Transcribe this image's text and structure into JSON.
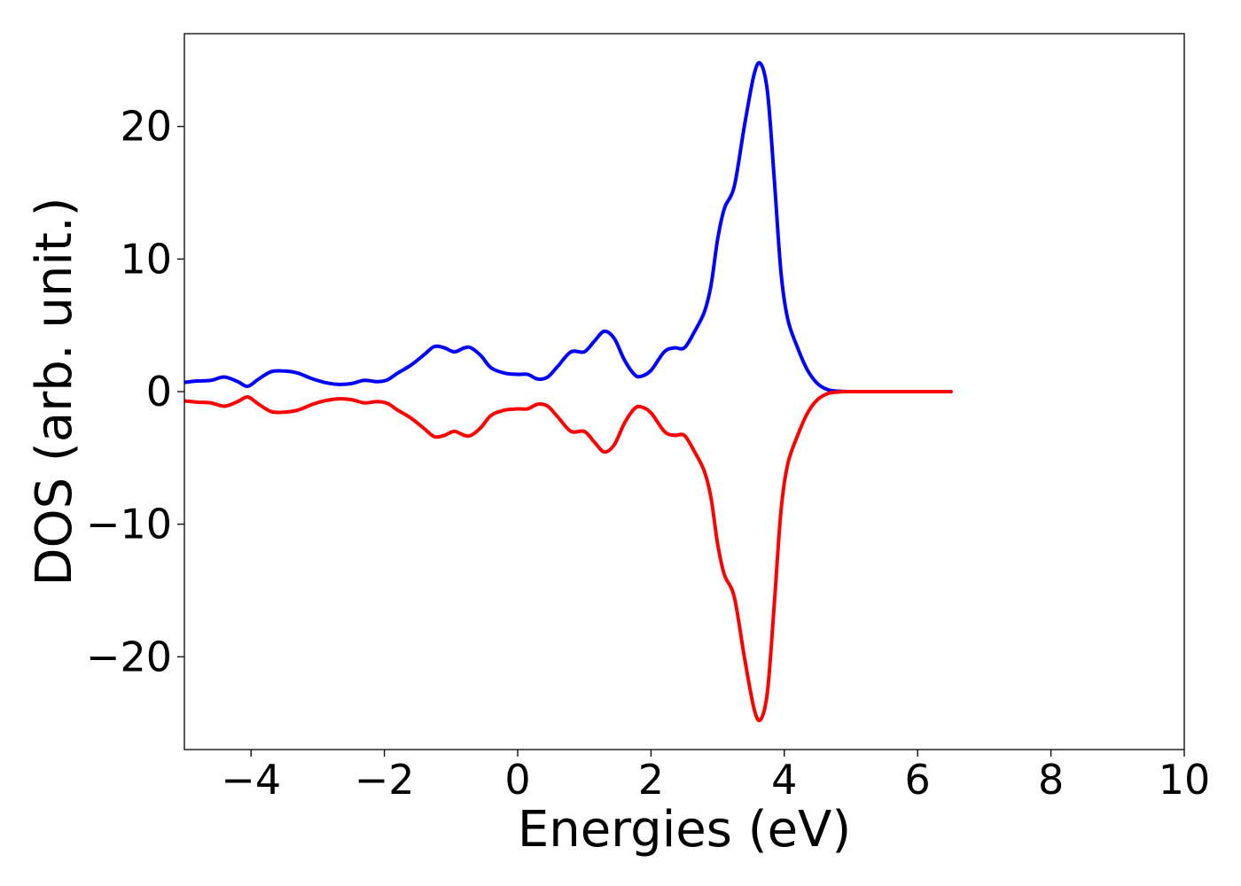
{
  "chart_data": {
    "type": "line",
    "title": "",
    "xlabel": "Energies (eV)",
    "ylabel": "DOS (arb. unit.)",
    "xlim": [
      -5,
      10
    ],
    "ylim": [
      -27,
      27
    ],
    "grid": false,
    "legend": "none",
    "x_ticks": [
      -4,
      -2,
      0,
      2,
      4,
      6,
      8,
      10
    ],
    "x_tick_labels": [
      "−4",
      "−2",
      "0",
      "2",
      "4",
      "6",
      "8",
      "10"
    ],
    "y_ticks": [
      -20,
      -10,
      0,
      10,
      20
    ],
    "y_tick_labels": [
      "−20",
      "−10",
      "0",
      "10",
      "20"
    ],
    "series": [
      {
        "color": "#0000ff",
        "points": [
          [
            -5.0,
            0.7
          ],
          [
            -4.8,
            0.8
          ],
          [
            -4.6,
            0.85
          ],
          [
            -4.4,
            1.1
          ],
          [
            -4.2,
            0.75
          ],
          [
            -4.05,
            0.4
          ],
          [
            -3.9,
            0.9
          ],
          [
            -3.7,
            1.5
          ],
          [
            -3.5,
            1.55
          ],
          [
            -3.3,
            1.4
          ],
          [
            -3.1,
            1.0
          ],
          [
            -2.9,
            0.7
          ],
          [
            -2.7,
            0.55
          ],
          [
            -2.5,
            0.6
          ],
          [
            -2.3,
            0.85
          ],
          [
            -2.1,
            0.75
          ],
          [
            -1.95,
            0.9
          ],
          [
            -1.8,
            1.4
          ],
          [
            -1.6,
            2.0
          ],
          [
            -1.4,
            2.8
          ],
          [
            -1.25,
            3.4
          ],
          [
            -1.1,
            3.3
          ],
          [
            -0.95,
            3.0
          ],
          [
            -0.8,
            3.3
          ],
          [
            -0.7,
            3.3
          ],
          [
            -0.55,
            2.7
          ],
          [
            -0.4,
            1.8
          ],
          [
            -0.2,
            1.4
          ],
          [
            0.0,
            1.3
          ],
          [
            0.15,
            1.3
          ],
          [
            0.3,
            0.95
          ],
          [
            0.45,
            1.1
          ],
          [
            0.6,
            1.9
          ],
          [
            0.8,
            3.0
          ],
          [
            1.0,
            3.0
          ],
          [
            1.15,
            3.8
          ],
          [
            1.3,
            4.55
          ],
          [
            1.45,
            4.0
          ],
          [
            1.6,
            2.4
          ],
          [
            1.75,
            1.3
          ],
          [
            1.85,
            1.15
          ],
          [
            2.0,
            1.6
          ],
          [
            2.2,
            3.0
          ],
          [
            2.35,
            3.3
          ],
          [
            2.5,
            3.3
          ],
          [
            2.65,
            4.5
          ],
          [
            2.8,
            6.0
          ],
          [
            2.9,
            8.0
          ],
          [
            3.0,
            11.5
          ],
          [
            3.1,
            13.8
          ],
          [
            3.25,
            15.5
          ],
          [
            3.4,
            20.0
          ],
          [
            3.55,
            24.0
          ],
          [
            3.65,
            24.7
          ],
          [
            3.75,
            22.5
          ],
          [
            3.85,
            16.0
          ],
          [
            3.95,
            9.0
          ],
          [
            4.05,
            5.5
          ],
          [
            4.2,
            3.3
          ],
          [
            4.35,
            1.6
          ],
          [
            4.5,
            0.6
          ],
          [
            4.65,
            0.15
          ],
          [
            4.8,
            0.03
          ],
          [
            5.0,
            0.0
          ],
          [
            5.5,
            0.0
          ],
          [
            6.0,
            0.0
          ],
          [
            6.5,
            0.0
          ]
        ]
      },
      {
        "color": "#ff0000",
        "points": [
          [
            -5.0,
            -0.7
          ],
          [
            -4.8,
            -0.8
          ],
          [
            -4.6,
            -0.85
          ],
          [
            -4.4,
            -1.1
          ],
          [
            -4.2,
            -0.75
          ],
          [
            -4.05,
            -0.4
          ],
          [
            -3.9,
            -0.9
          ],
          [
            -3.7,
            -1.5
          ],
          [
            -3.5,
            -1.55
          ],
          [
            -3.3,
            -1.4
          ],
          [
            -3.1,
            -1.0
          ],
          [
            -2.9,
            -0.7
          ],
          [
            -2.7,
            -0.55
          ],
          [
            -2.5,
            -0.6
          ],
          [
            -2.3,
            -0.85
          ],
          [
            -2.1,
            -0.75
          ],
          [
            -1.95,
            -0.9
          ],
          [
            -1.8,
            -1.4
          ],
          [
            -1.6,
            -2.0
          ],
          [
            -1.4,
            -2.8
          ],
          [
            -1.25,
            -3.4
          ],
          [
            -1.1,
            -3.3
          ],
          [
            -0.95,
            -3.0
          ],
          [
            -0.8,
            -3.3
          ],
          [
            -0.7,
            -3.3
          ],
          [
            -0.55,
            -2.7
          ],
          [
            -0.4,
            -1.8
          ],
          [
            -0.2,
            -1.4
          ],
          [
            0.0,
            -1.3
          ],
          [
            0.15,
            -1.3
          ],
          [
            0.3,
            -0.95
          ],
          [
            0.45,
            -1.1
          ],
          [
            0.6,
            -1.9
          ],
          [
            0.8,
            -3.0
          ],
          [
            1.0,
            -3.0
          ],
          [
            1.15,
            -3.8
          ],
          [
            1.3,
            -4.55
          ],
          [
            1.45,
            -4.0
          ],
          [
            1.6,
            -2.4
          ],
          [
            1.75,
            -1.3
          ],
          [
            1.85,
            -1.15
          ],
          [
            2.0,
            -1.6
          ],
          [
            2.2,
            -3.0
          ],
          [
            2.35,
            -3.3
          ],
          [
            2.5,
            -3.3
          ],
          [
            2.65,
            -4.5
          ],
          [
            2.8,
            -6.0
          ],
          [
            2.9,
            -8.0
          ],
          [
            3.0,
            -11.5
          ],
          [
            3.1,
            -13.8
          ],
          [
            3.25,
            -15.5
          ],
          [
            3.4,
            -20.0
          ],
          [
            3.55,
            -24.0
          ],
          [
            3.65,
            -24.7
          ],
          [
            3.75,
            -22.5
          ],
          [
            3.85,
            -16.0
          ],
          [
            3.95,
            -9.0
          ],
          [
            4.05,
            -5.5
          ],
          [
            4.2,
            -3.3
          ],
          [
            4.35,
            -1.6
          ],
          [
            4.5,
            -0.6
          ],
          [
            4.65,
            -0.15
          ],
          [
            4.8,
            -0.03
          ],
          [
            5.0,
            0.0
          ],
          [
            5.5,
            0.0
          ],
          [
            6.0,
            0.0
          ],
          [
            6.5,
            0.0
          ]
        ]
      }
    ]
  }
}
